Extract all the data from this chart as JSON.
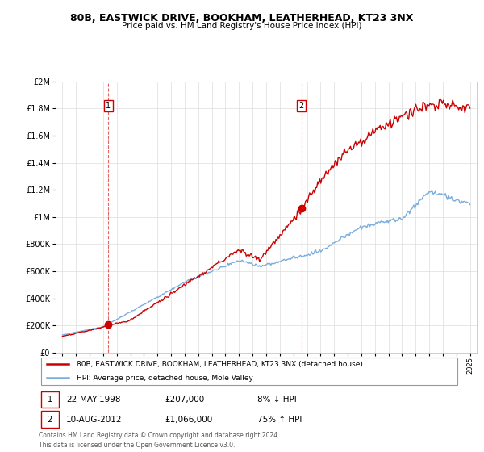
{
  "title": "80B, EASTWICK DRIVE, BOOKHAM, LEATHERHEAD, KT23 3NX",
  "subtitle": "Price paid vs. HM Land Registry's House Price Index (HPI)",
  "ylim": [
    0,
    2000000
  ],
  "yticks": [
    0,
    200000,
    400000,
    600000,
    800000,
    1000000,
    1200000,
    1400000,
    1600000,
    1800000,
    2000000
  ],
  "ytick_labels": [
    "£0",
    "£200K",
    "£400K",
    "£600K",
    "£800K",
    "£1M",
    "£1.2M",
    "£1.4M",
    "£1.6M",
    "£1.8M",
    "£2M"
  ],
  "sale1_date": 1998.38,
  "sale1_price": 207000,
  "sale2_date": 2012.6,
  "sale2_price": 1066000,
  "sale1_info_date": "22-MAY-1998",
  "sale1_info_price": "£207,000",
  "sale1_info_hpi": "8% ↓ HPI",
  "sale2_info_date": "10-AUG-2012",
  "sale2_info_price": "£1,066,000",
  "sale2_info_hpi": "75% ↑ HPI",
  "legend_property": "80B, EASTWICK DRIVE, BOOKHAM, LEATHERHEAD, KT23 3NX (detached house)",
  "legend_hpi": "HPI: Average price, detached house, Mole Valley",
  "footer": "Contains HM Land Registry data © Crown copyright and database right 2024.\nThis data is licensed under the Open Government Licence v3.0.",
  "property_color": "#cc0000",
  "hpi_color": "#7aaddb",
  "background_color": "#ffffff",
  "grid_color": "#dddddd"
}
